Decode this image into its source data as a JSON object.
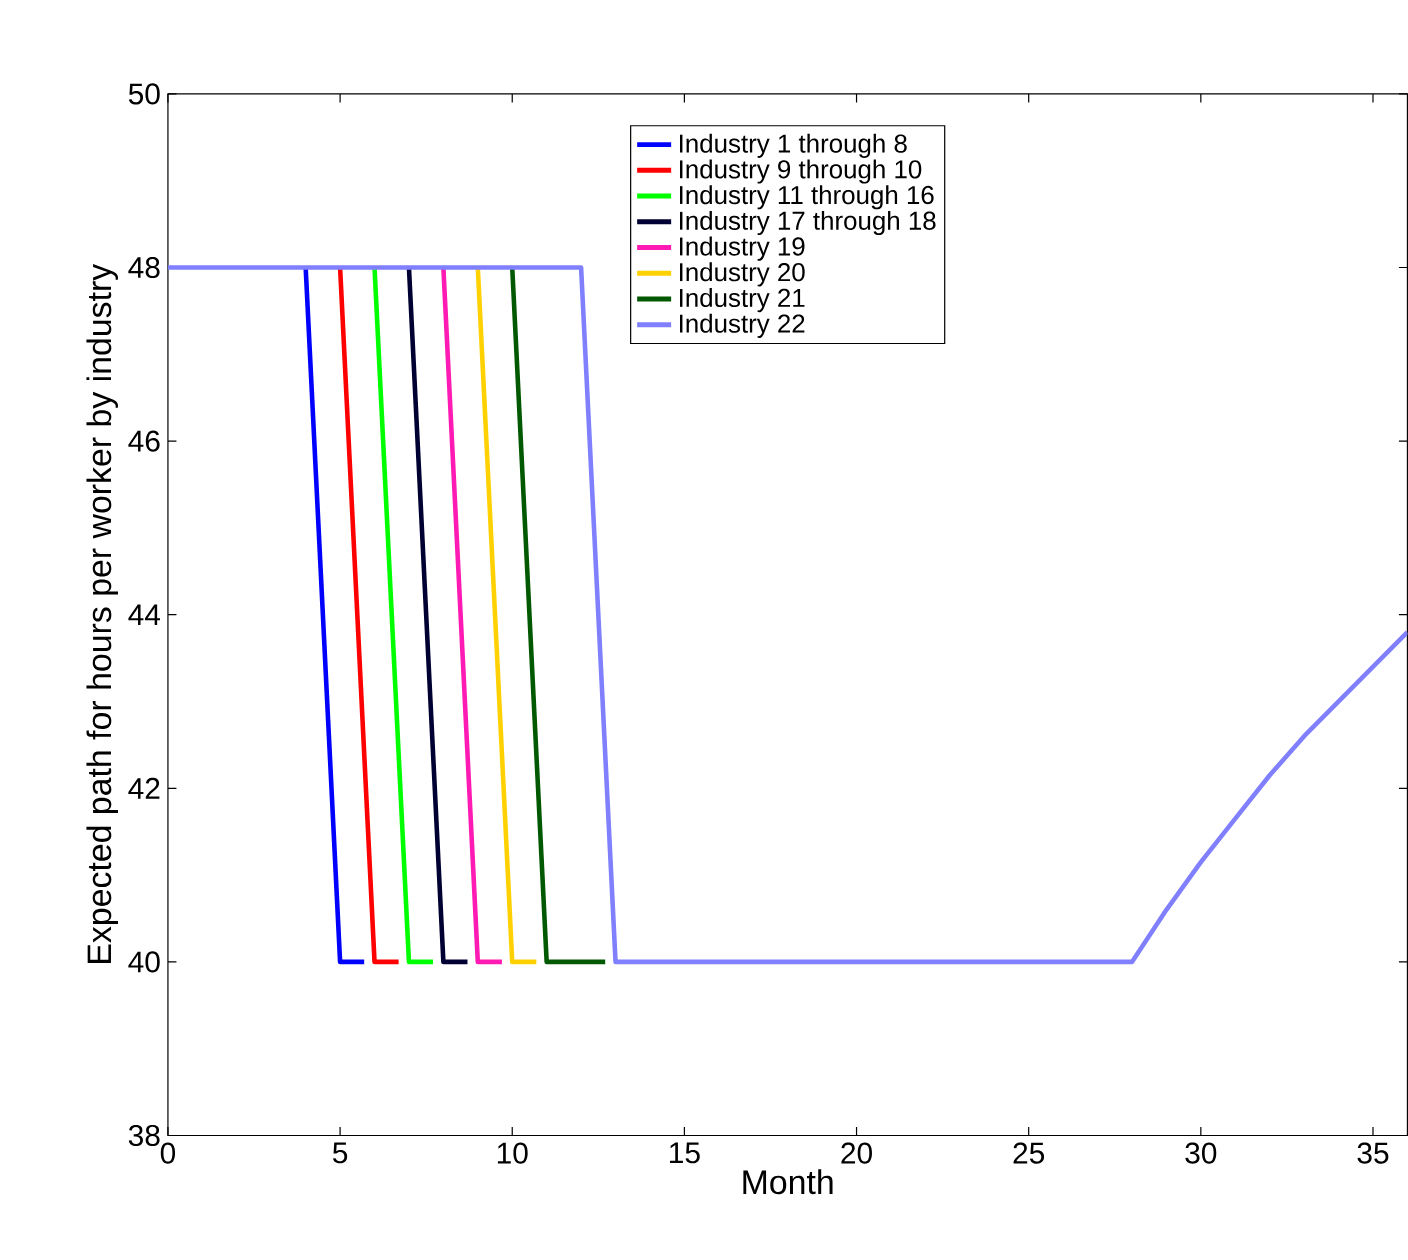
{
  "chart_data": {
    "type": "line",
    "xlabel": "Month",
    "ylabel": "Expected path for hours per worker by industry",
    "xlim": [
      0,
      36
    ],
    "xticks": [
      0,
      5,
      10,
      15,
      20,
      25,
      30,
      35
    ],
    "ylim": [
      38,
      50
    ],
    "yticks": [
      38,
      40,
      42,
      44,
      46,
      48,
      50
    ],
    "grid": false,
    "legend": "top",
    "marker": "none",
    "line_style": "solid",
    "series": [
      {
        "name": "Industry 1 through 8",
        "color": "#0000ff",
        "x": [
          4,
          5,
          5.7
        ],
        "values": [
          48,
          40,
          40
        ]
      },
      {
        "name": "Industry 9 through 10",
        "color": "#ff0000",
        "x": [
          5,
          6,
          6.7
        ],
        "values": [
          48,
          40,
          40
        ]
      },
      {
        "name": "Industry 11 through 16",
        "color": "#00ff00",
        "x": [
          6,
          7,
          7.7
        ],
        "values": [
          48,
          40,
          40
        ]
      },
      {
        "name": "Industry 17 through 18",
        "color": "#000033",
        "x": [
          7,
          8,
          8.7
        ],
        "values": [
          48,
          40,
          40
        ]
      },
      {
        "name": "Industry 19",
        "color": "#ff1ab3",
        "x": [
          8,
          9,
          9.7
        ],
        "values": [
          48,
          40,
          40
        ]
      },
      {
        "name": "Industry 20",
        "color": "#ffd100",
        "x": [
          9,
          10,
          10.7
        ],
        "values": [
          48,
          40,
          40
        ]
      },
      {
        "name": "Industry 21",
        "color": "#005900",
        "x": [
          10,
          11,
          12.7
        ],
        "values": [
          48,
          40,
          40
        ]
      },
      {
        "name": "Industry 22",
        "color": "#8080ff",
        "x": [
          0,
          12,
          13,
          28,
          29,
          30,
          31,
          32,
          33,
          34,
          35,
          36
        ],
        "values": [
          48,
          48,
          40,
          40,
          40.6,
          41.15,
          41.65,
          42.15,
          42.6,
          43.0,
          43.4,
          43.8
        ]
      }
    ]
  }
}
